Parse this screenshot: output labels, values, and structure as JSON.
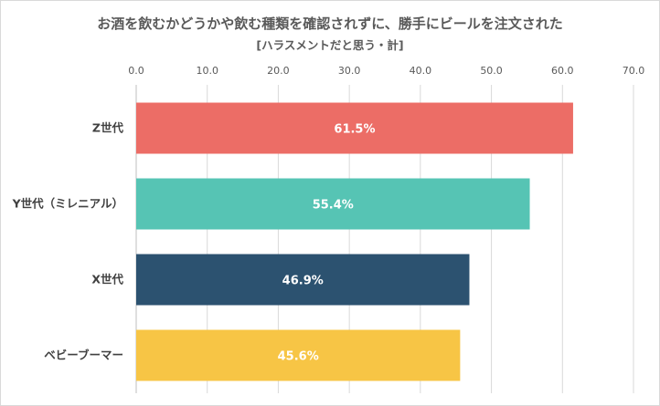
{
  "chart_data": {
    "type": "bar",
    "orientation": "horizontal",
    "title": "お酒を飲むかどうかや飲む種類を確認されずに、勝手にビールを注文された",
    "subtitle": "[ハラスメントだと思う・計]",
    "categories": [
      "Z世代",
      "Y世代（ミレニアル）",
      "X世代",
      "ベビーブーマー"
    ],
    "values": [
      61.5,
      55.4,
      46.9,
      45.6
    ],
    "data_labels": [
      "61.5%",
      "55.4%",
      "46.9%",
      "45.6%"
    ],
    "colors": [
      "#ec6d66",
      "#56c4b4",
      "#2c5270",
      "#f7c545"
    ],
    "xlim": [
      0,
      70
    ],
    "ticks": [
      0,
      10,
      20,
      30,
      40,
      50,
      60,
      70
    ],
    "tick_labels": [
      "0.0",
      "10.0",
      "20.0",
      "30.0",
      "40.0",
      "50.0",
      "60.0",
      "70.0"
    ],
    "axis_position": "top",
    "grid": true,
    "xlabel": "",
    "ylabel": ""
  }
}
